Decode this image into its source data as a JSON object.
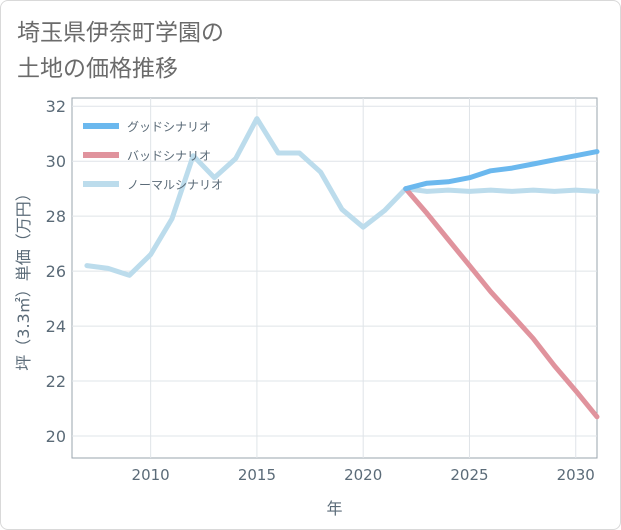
{
  "title": "埼玉県伊奈町学園の\n土地の価格推移",
  "chart_data": {
    "type": "line",
    "xlabel": "年",
    "ylabel": "坪（3.3㎡）単価（万円）",
    "xlim": [
      2006.3,
      2031
    ],
    "ylim": [
      19.2,
      32.3
    ],
    "x_ticks": [
      2010,
      2015,
      2020,
      2025,
      2030
    ],
    "y_ticks": [
      20,
      22,
      24,
      26,
      28,
      30,
      32
    ],
    "grid": true,
    "legend_position": "top-left",
    "series": [
      {
        "name": "グッドシナリオ",
        "color": "#6bb8ee",
        "x": [
          2022,
          2023,
          2024,
          2025,
          2026,
          2027,
          2028,
          2029,
          2030,
          2031
        ],
        "y": [
          29.0,
          29.2,
          29.25,
          29.4,
          29.65,
          29.75,
          29.9,
          30.05,
          30.2,
          30.35
        ]
      },
      {
        "name": "バッドシナリオ",
        "color": "#e0939d",
        "x": [
          2022,
          2023,
          2024,
          2025,
          2026,
          2027,
          2028,
          2029,
          2030,
          2031
        ],
        "y": [
          29.0,
          28.1,
          27.15,
          26.2,
          25.25,
          24.4,
          23.55,
          22.55,
          21.65,
          20.7
        ]
      },
      {
        "name": "ノーマルシナリオ",
        "color": "#bcdcec",
        "x": [
          2007,
          2008,
          2009,
          2010,
          2011,
          2012,
          2013,
          2014,
          2015,
          2016,
          2017,
          2018,
          2019,
          2020,
          2021,
          2022,
          2023,
          2024,
          2025,
          2026,
          2027,
          2028,
          2029,
          2030,
          2031
        ],
        "y": [
          26.2,
          26.1,
          25.85,
          26.6,
          27.9,
          30.2,
          29.4,
          30.1,
          31.55,
          30.3,
          30.3,
          29.6,
          28.25,
          27.6,
          28.2,
          29.0,
          28.9,
          28.95,
          28.9,
          28.95,
          28.9,
          28.95,
          28.9,
          28.95,
          28.9
        ]
      }
    ]
  }
}
